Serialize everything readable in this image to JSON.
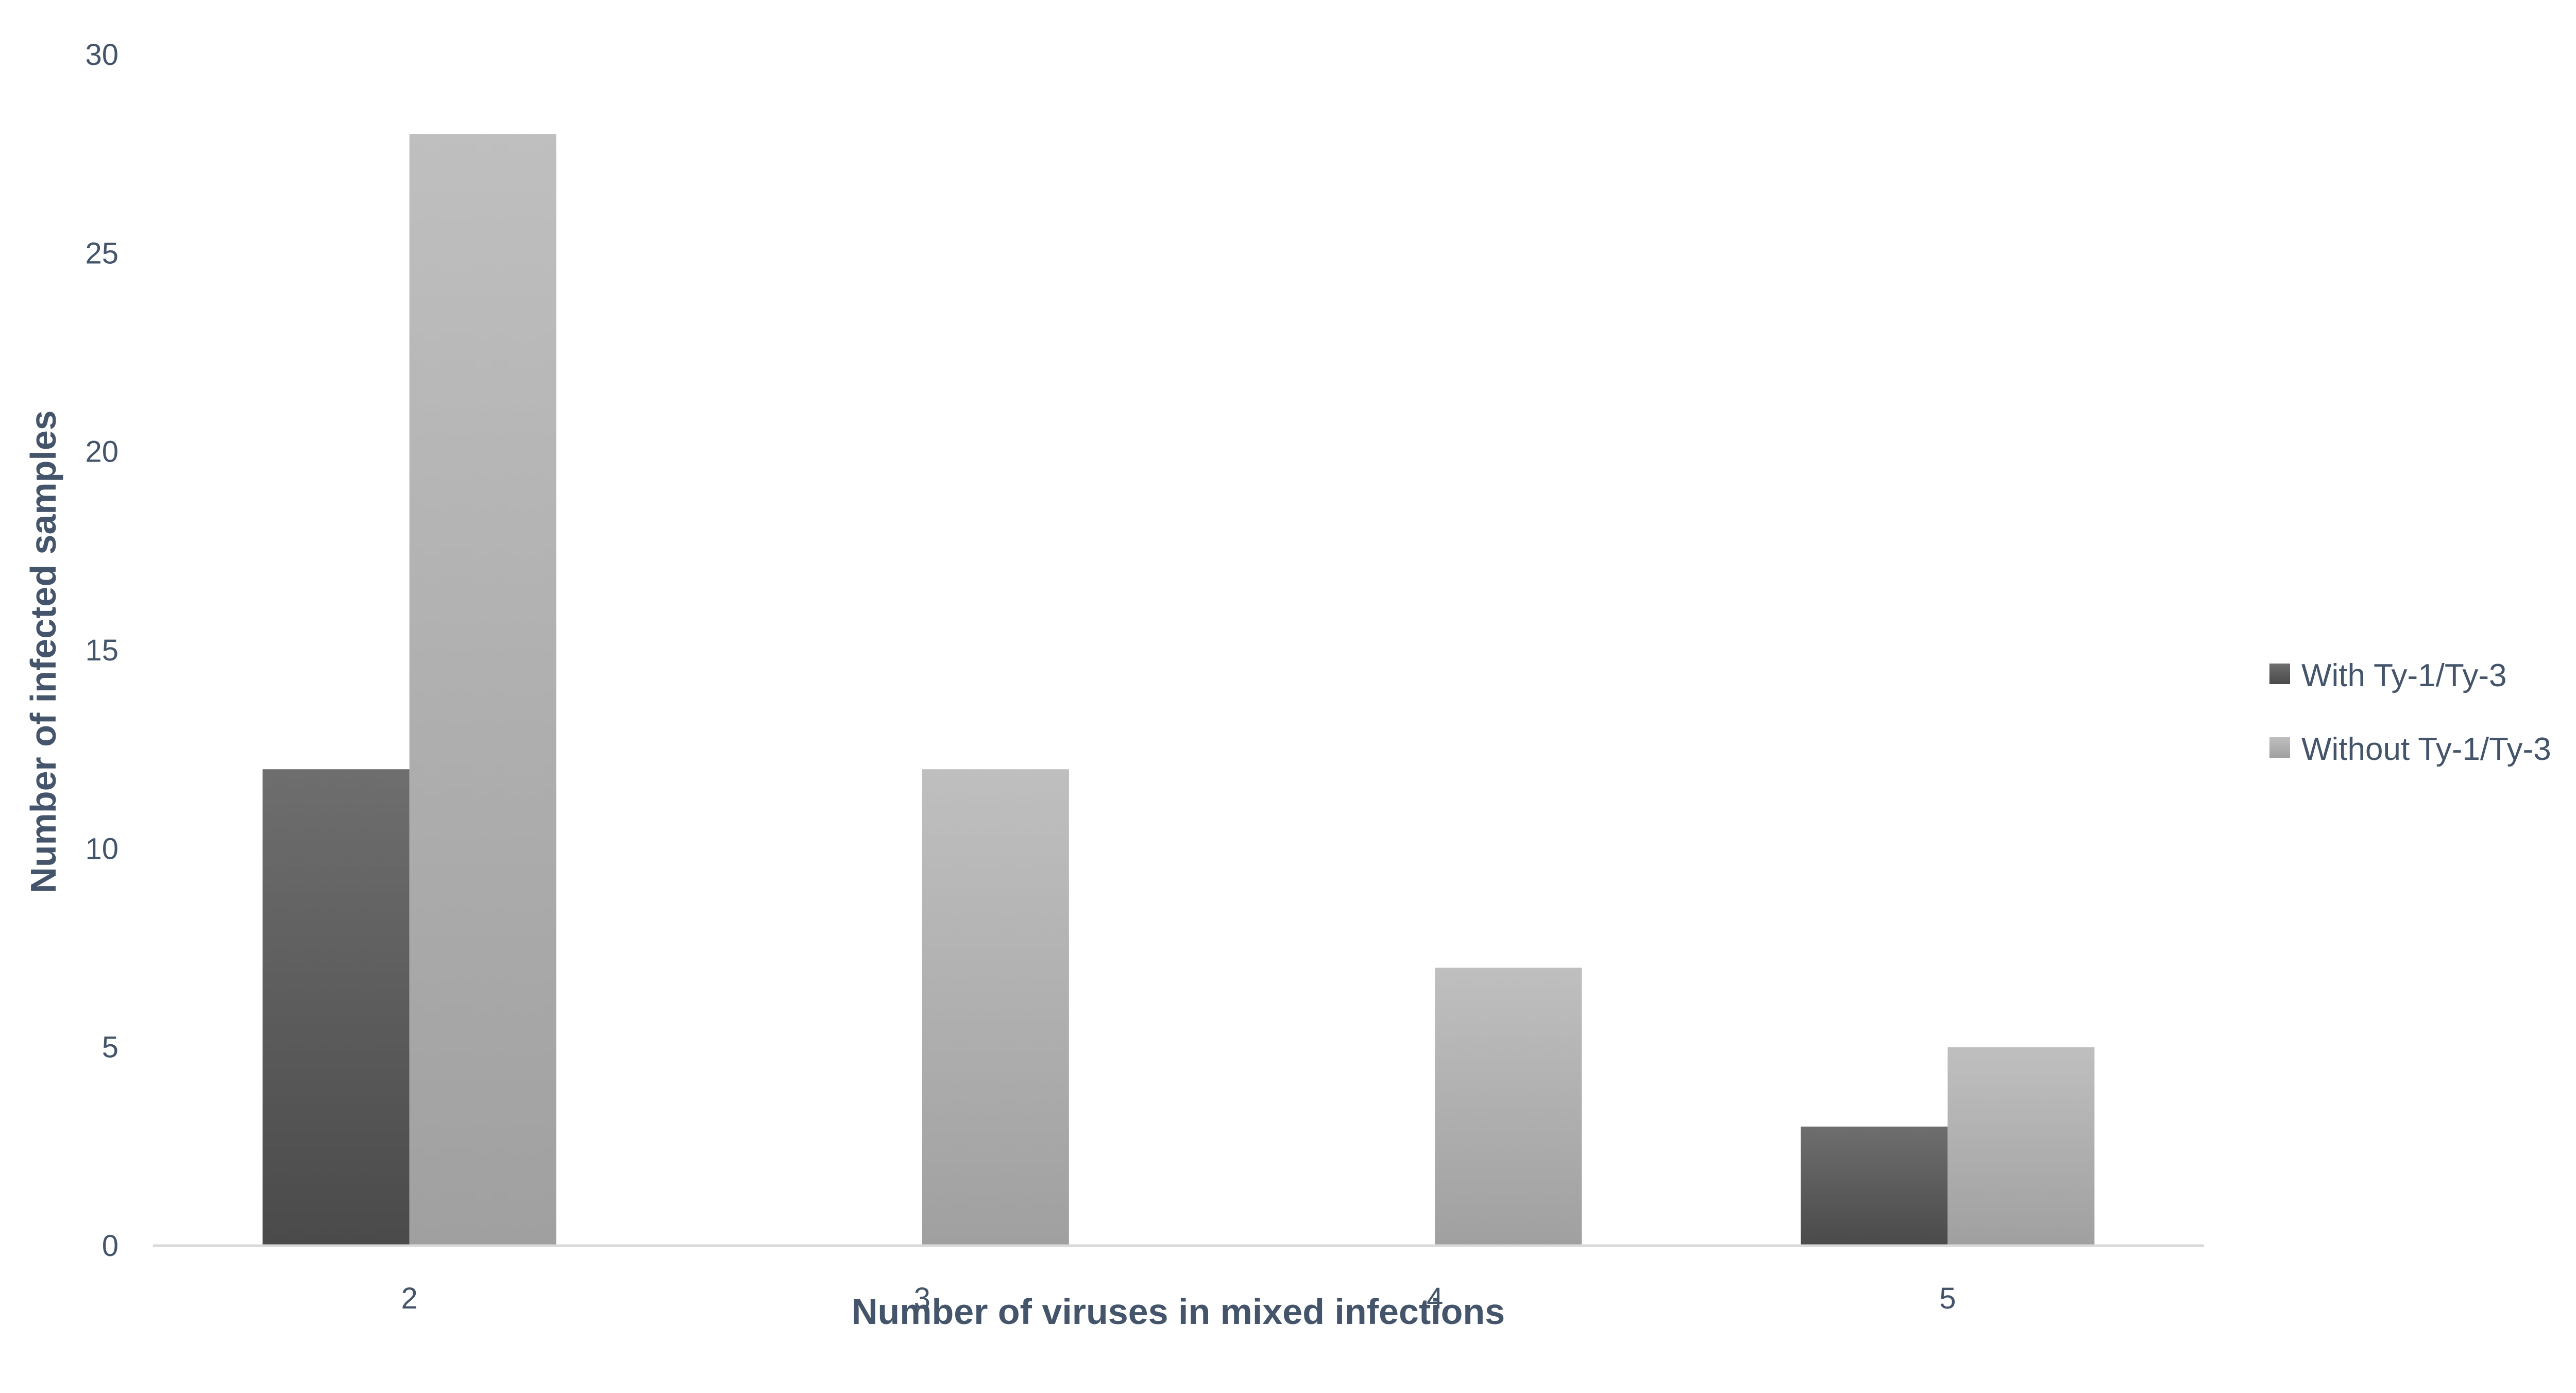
{
  "chart_data": {
    "type": "bar",
    "categories": [
      "2",
      "3",
      "4",
      "5"
    ],
    "series": [
      {
        "name": "With Ty-1/Ty-3",
        "values": [
          12,
          0,
          0,
          3
        ],
        "color": "#595959"
      },
      {
        "name": "Without Ty-1/Ty-3",
        "values": [
          28,
          12,
          7,
          5
        ],
        "color": "#a6a6a6"
      }
    ],
    "xlabel": "Number of viruses in mixed infections",
    "ylabel": "Number of infected samples",
    "ylim": [
      0,
      30
    ],
    "yticks": [
      "0",
      "5",
      "10",
      "15",
      "20",
      "25",
      "30"
    ],
    "grid": false,
    "legend_position": "right"
  }
}
